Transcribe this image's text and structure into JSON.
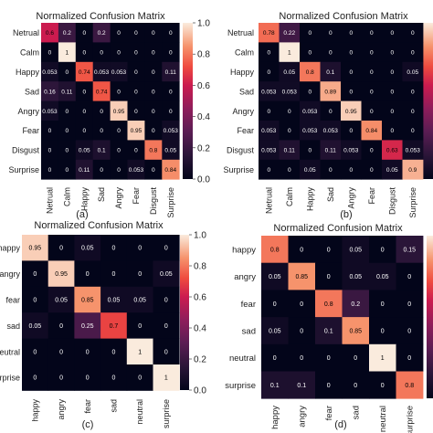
{
  "colors": {
    "colormap": "rocket",
    "text_dark": "#000000",
    "text_light": "#ffffff",
    "axis_text": "#222222"
  },
  "chart_data": [
    {
      "type": "heatmap",
      "caption": "(a)",
      "title": "Normalized Confusion Matrix",
      "row_labels": [
        "Netrual",
        "Calm",
        "Happy",
        "Sad",
        "Angry",
        "Fear",
        "Disgust",
        "Surprise"
      ],
      "col_labels": [
        "Netrual",
        "Calm",
        "Happy",
        "Sad",
        "Angry",
        "Fear",
        "Disgust",
        "Surprise"
      ],
      "cell_labels": [
        [
          "0.6",
          "0.2",
          "0",
          "0.2",
          "0",
          "0",
          "0",
          "0"
        ],
        [
          "0",
          "1",
          "0",
          "0",
          "0",
          "0",
          "0",
          "0"
        ],
        [
          "0.053",
          "0",
          "0.74",
          "0.053",
          "0.053",
          "0",
          "0",
          "0.11"
        ],
        [
          "0.16",
          "0.11",
          "0",
          "0.74",
          "0",
          "0",
          "0",
          "0"
        ],
        [
          "0.053",
          "0",
          "0",
          "0",
          "0.95",
          "0",
          "0",
          "0"
        ],
        [
          "0",
          "0",
          "0",
          "0",
          "0",
          "0.95",
          "0",
          "0.053"
        ],
        [
          "0",
          "0",
          "0.05",
          "0.1",
          "0",
          "0",
          "0.8",
          "0.05"
        ],
        [
          "0",
          "0",
          "0.11",
          "0",
          "0",
          "0.053",
          "0",
          "0.84"
        ]
      ],
      "colorbar_ticks": [
        "0.0",
        "0.2",
        "0.4",
        "0.6",
        "0.8",
        "1.0"
      ],
      "vmin": 0,
      "vmax": 1
    },
    {
      "type": "heatmap",
      "caption": "(b)",
      "title": "Normalized Confusion Matrix",
      "row_labels": [
        "Netrual",
        "Calm",
        "Happy",
        "Sad",
        "Angry",
        "Fear",
        "Disgust",
        "Surprise"
      ],
      "col_labels": [
        "Netrual",
        "Calm",
        "Happy",
        "Sad",
        "Angry",
        "Fear",
        "Disgust",
        "Surprise"
      ],
      "cell_labels": [
        [
          "0.78",
          "0.22",
          "0",
          "0",
          "0",
          "0",
          "0",
          "0"
        ],
        [
          "0",
          "1",
          "0",
          "0",
          "0",
          "0",
          "0",
          "0"
        ],
        [
          "0",
          "0.05",
          "0.8",
          "0.1",
          "0",
          "0",
          "0",
          "0.05"
        ],
        [
          "0.053",
          "0.053",
          "0",
          "0.89",
          "0",
          "0",
          "0",
          "0"
        ],
        [
          "0",
          "0",
          "0.053",
          "0",
          "0.95",
          "0",
          "0",
          "0"
        ],
        [
          "0.053",
          "0",
          "0.053",
          "0.053",
          "0",
          "0.84",
          "0",
          "0"
        ],
        [
          "0.053",
          "0.11",
          "0",
          "0.11",
          "0.053",
          "0",
          "0.63",
          "0.053"
        ],
        [
          "0",
          "0",
          "0.05",
          "0",
          "0",
          "0",
          "0.05",
          "0.9"
        ]
      ],
      "colorbar_ticks": [
        "0.0",
        "0.2",
        "0.4",
        "0.6",
        "0.8",
        "1.0"
      ],
      "vmin": 0,
      "vmax": 1
    },
    {
      "type": "heatmap",
      "caption": "(c)",
      "title": "Normalized Confusion Matrix",
      "row_labels": [
        "happy",
        "angry",
        "fear",
        "sad",
        "neutral",
        "surprise"
      ],
      "col_labels": [
        "happy",
        "angry",
        "fear",
        "sad",
        "neutral",
        "surprise"
      ],
      "cell_labels": [
        [
          "0.95",
          "0",
          "0.05",
          "0",
          "0",
          "0"
        ],
        [
          "0",
          "0.95",
          "0",
          "0",
          "0",
          "0.05"
        ],
        [
          "0",
          "0.05",
          "0.85",
          "0.05",
          "0.05",
          "0"
        ],
        [
          "0.05",
          "0",
          "0.25",
          "0.7",
          "0",
          "0"
        ],
        [
          "0",
          "0",
          "0",
          "0",
          "1",
          "0"
        ],
        [
          "0",
          "0",
          "0",
          "0",
          "0",
          "1"
        ]
      ],
      "colorbar_ticks": [
        "0.0",
        "0.2",
        "0.4",
        "0.6",
        "0.8",
        "1.0"
      ],
      "vmin": 0,
      "vmax": 1
    },
    {
      "type": "heatmap",
      "caption": "(d)",
      "title": "Normalized Confusion Matrix",
      "row_labels": [
        "happy",
        "angry",
        "fear",
        "sad",
        "neutral",
        "surprise"
      ],
      "col_labels": [
        "happy",
        "angry",
        "fear",
        "sad",
        "neutral",
        "surprise"
      ],
      "cell_labels": [
        [
          "0.8",
          "0",
          "0",
          "0.05",
          "0",
          "0.15"
        ],
        [
          "0.05",
          "0.85",
          "0",
          "0.05",
          "0.05",
          "0"
        ],
        [
          "0",
          "0",
          "0.8",
          "0.2",
          "0",
          "0"
        ],
        [
          "0.05",
          "0",
          "0.1",
          "0.85",
          "0",
          "0"
        ],
        [
          "0",
          "0",
          "0",
          "0",
          "1",
          "0"
        ],
        [
          "0.1",
          "0.1",
          "0",
          "0",
          "0",
          "0.8"
        ]
      ],
      "vmin": 0,
      "vmax": 1
    }
  ]
}
